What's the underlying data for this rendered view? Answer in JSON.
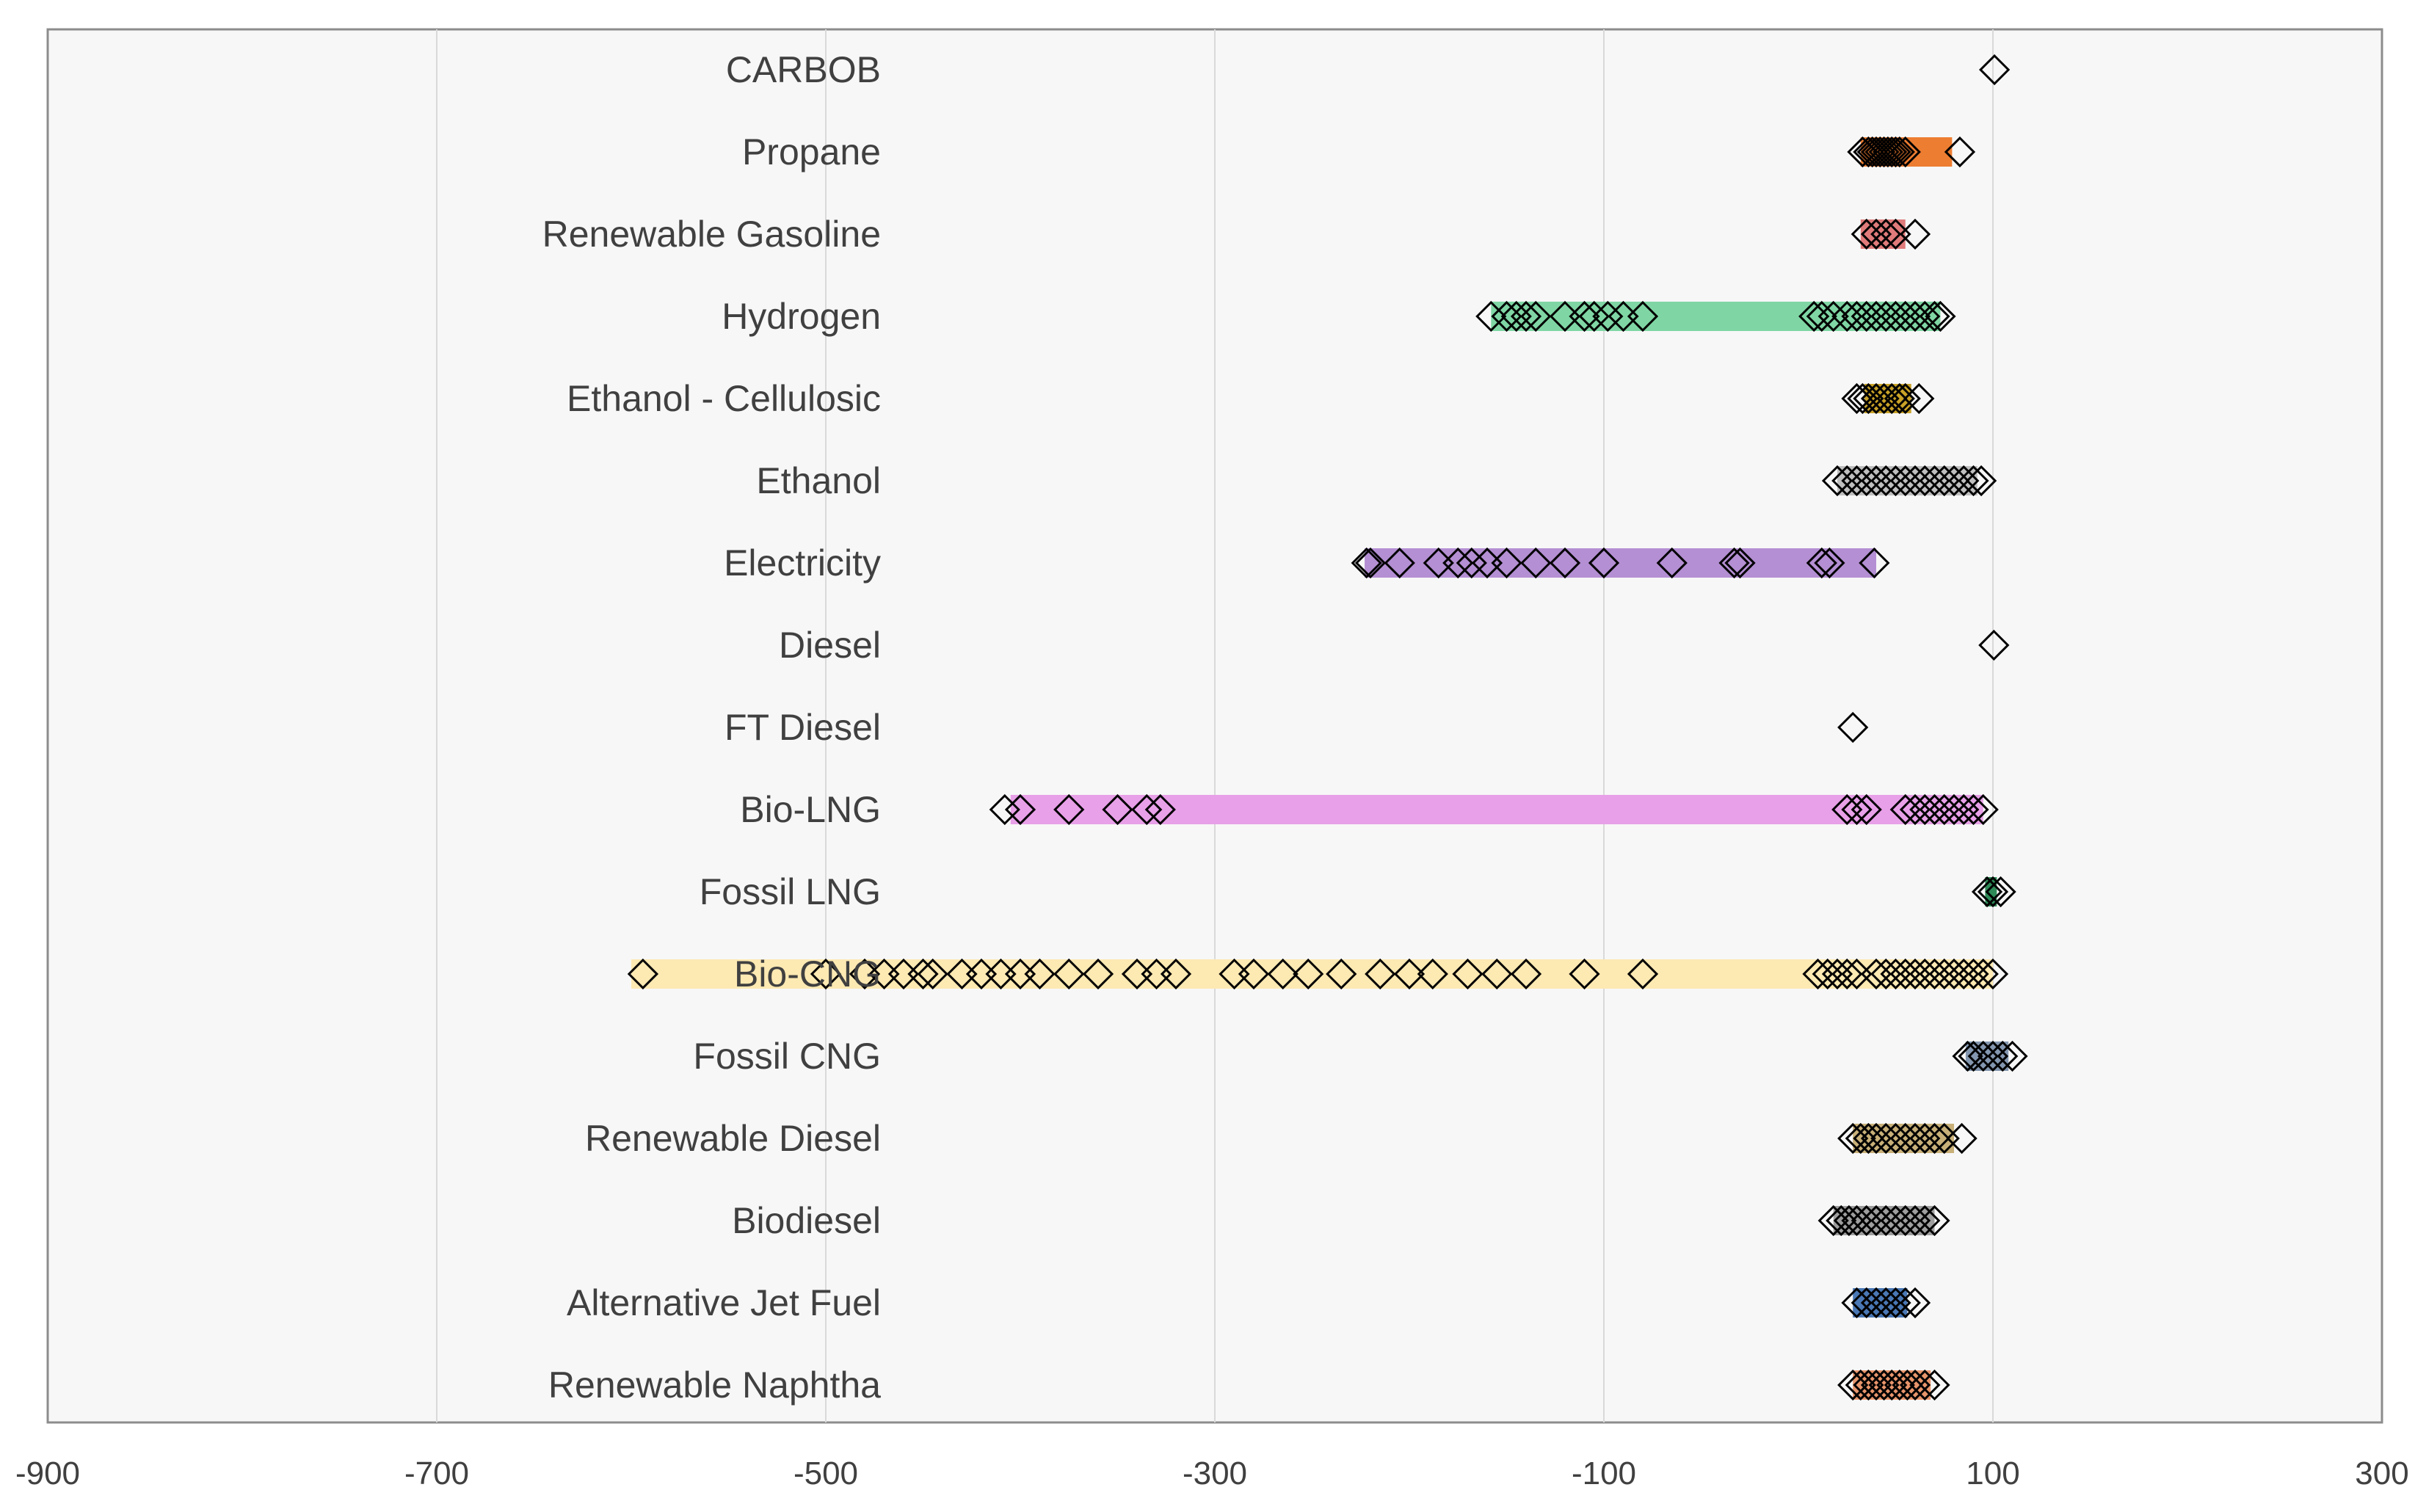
{
  "chart_data": {
    "type": "scatter",
    "title": "",
    "xlabel": "",
    "ylabel": "",
    "xlim": [
      -900,
      300
    ],
    "xticks": [
      -900,
      -700,
      -500,
      -300,
      -100,
      100,
      300
    ],
    "grid": "vertical",
    "legend": "none",
    "marker": "diamond (open)",
    "categories": [
      {
        "name": "CARBOB",
        "color": "#cfcfcf",
        "range": null,
        "values": [
          100.8
        ]
      },
      {
        "name": "Propane",
        "color": "#ed7d31",
        "range": [
          32,
          79
        ],
        "values": [
          33,
          36,
          38,
          40,
          42,
          44,
          46,
          48,
          50,
          52,
          55,
          83
        ]
      },
      {
        "name": "Renewable Gasoline",
        "color": "#e07b7b",
        "range": [
          32,
          55
        ],
        "values": [
          35,
          40,
          45,
          50,
          60
        ]
      },
      {
        "name": "Hydrogen",
        "color": "#7fd6a4",
        "range": [
          -158,
          73
        ],
        "values": [
          -158,
          -150,
          -145,
          -140,
          -135,
          -120,
          -110,
          -105,
          -98,
          -90,
          -80,
          8,
          12,
          18,
          25,
          30,
          35,
          40,
          45,
          50,
          55,
          60,
          65,
          70,
          73
        ]
      },
      {
        "name": "Ethanol - Cellulosic",
        "color": "#c9a227",
        "range": [
          34,
          58
        ],
        "values": [
          30,
          33,
          36,
          40,
          44,
          48,
          52,
          55,
          62
        ]
      },
      {
        "name": "Ethanol",
        "color": "#bfbfbf",
        "range": [
          20,
          92
        ],
        "values": [
          20,
          25,
          30,
          35,
          40,
          45,
          50,
          55,
          60,
          65,
          70,
          75,
          80,
          85,
          90,
          94
        ]
      },
      {
        "name": "Electricity",
        "color": "#b48fd3",
        "range": [
          -223,
          40
        ],
        "values": [
          -222,
          -220,
          -205,
          -185,
          -175,
          -168,
          -160,
          -150,
          -135,
          -120,
          -100,
          -65,
          -33,
          -30,
          12,
          16,
          39
        ]
      },
      {
        "name": "Diesel",
        "color": "#cfcfcf",
        "range": null,
        "values": [
          100.5
        ]
      },
      {
        "name": "FT Diesel",
        "color": "#cfcfcf",
        "range": null,
        "values": [
          28
        ]
      },
      {
        "name": "Bio-LNG",
        "color": "#e8a0e8",
        "range": [
          -405,
          95
        ],
        "values": [
          -408,
          -400,
          -375,
          -350,
          -335,
          -328,
          25,
          30,
          35,
          55,
          60,
          65,
          70,
          75,
          80,
          85,
          90,
          95
        ]
      },
      {
        "name": "Fossil LNG",
        "color": "#2e8b57",
        "range": [
          96,
          102
        ],
        "values": [
          97,
          100,
          104
        ]
      },
      {
        "name": "Bio-CNG",
        "color": "#fde9b2",
        "range": [
          -600,
          100
        ],
        "values": [
          -594,
          -500,
          -480,
          -470,
          -460,
          -450,
          -445,
          -430,
          -420,
          -410,
          -400,
          -390,
          -375,
          -360,
          -340,
          -330,
          -320,
          -290,
          -280,
          -265,
          -252,
          -235,
          -215,
          -200,
          -188,
          -170,
          -155,
          -140,
          -110,
          -80,
          10,
          15,
          20,
          25,
          30,
          40,
          45,
          50,
          55,
          60,
          65,
          70,
          75,
          80,
          85,
          90,
          95,
          100
        ]
      },
      {
        "name": "Fossil CNG",
        "color": "#8497b0",
        "range": [
          86,
          108
        ],
        "values": [
          87,
          90,
          95,
          100,
          105,
          110
        ]
      },
      {
        "name": "Renewable Diesel",
        "color": "#c8b078",
        "range": [
          28,
          80
        ],
        "values": [
          28,
          32,
          36,
          40,
          45,
          50,
          55,
          60,
          65,
          70,
          75,
          84
        ]
      },
      {
        "name": "Biodiesel",
        "color": "#9e9e9e",
        "range": [
          18,
          70
        ],
        "values": [
          18,
          22,
          26,
          30,
          35,
          40,
          45,
          50,
          55,
          60,
          65,
          70
        ]
      },
      {
        "name": "Alternative Jet Fuel",
        "color": "#4a78b5",
        "range": [
          28,
          56
        ],
        "values": [
          30,
          35,
          40,
          45,
          50,
          55,
          60
        ]
      },
      {
        "name": "Renewable Naphtha",
        "color": "#e8956b",
        "range": [
          28,
          68
        ],
        "values": [
          28,
          32,
          36,
          40,
          44,
          48,
          52,
          56,
          60,
          65,
          70
        ]
      }
    ]
  }
}
